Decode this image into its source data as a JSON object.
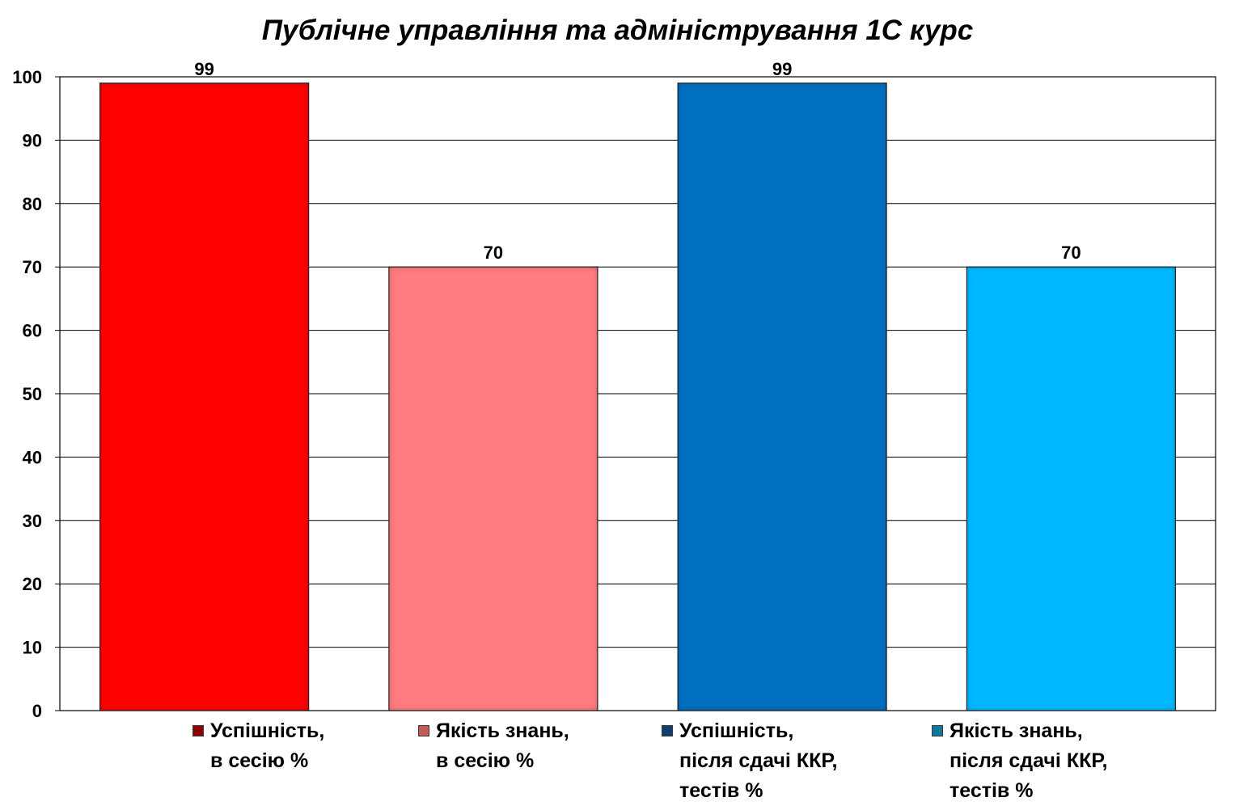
{
  "chart_data": {
    "type": "bar",
    "title": "Публічне управління та адміністрування 1С курс",
    "xlabel": "",
    "ylabel": "",
    "ylim": [
      0,
      100
    ],
    "yticks": [
      0,
      10,
      20,
      30,
      40,
      50,
      60,
      70,
      80,
      90,
      100
    ],
    "grid": true,
    "legend_position": "bottom",
    "data_labels": true,
    "categories": [
      "Успішність,\nв сесію %",
      "Якість знань,\nв сесію %",
      "Успішність,\nпісля сдачі ККР,\nтестів %",
      "Якість знань,\nпісля сдачі ККР,\nтестів %"
    ],
    "values": [
      99,
      70,
      99,
      70
    ],
    "colors": [
      "#ff0000",
      "#ff7c80",
      "#0070c0",
      "#00b8ff"
    ],
    "swatch_colors": [
      "#8b0000",
      "#c25a5a",
      "#0d3e6e",
      "#0e7a9a"
    ]
  }
}
